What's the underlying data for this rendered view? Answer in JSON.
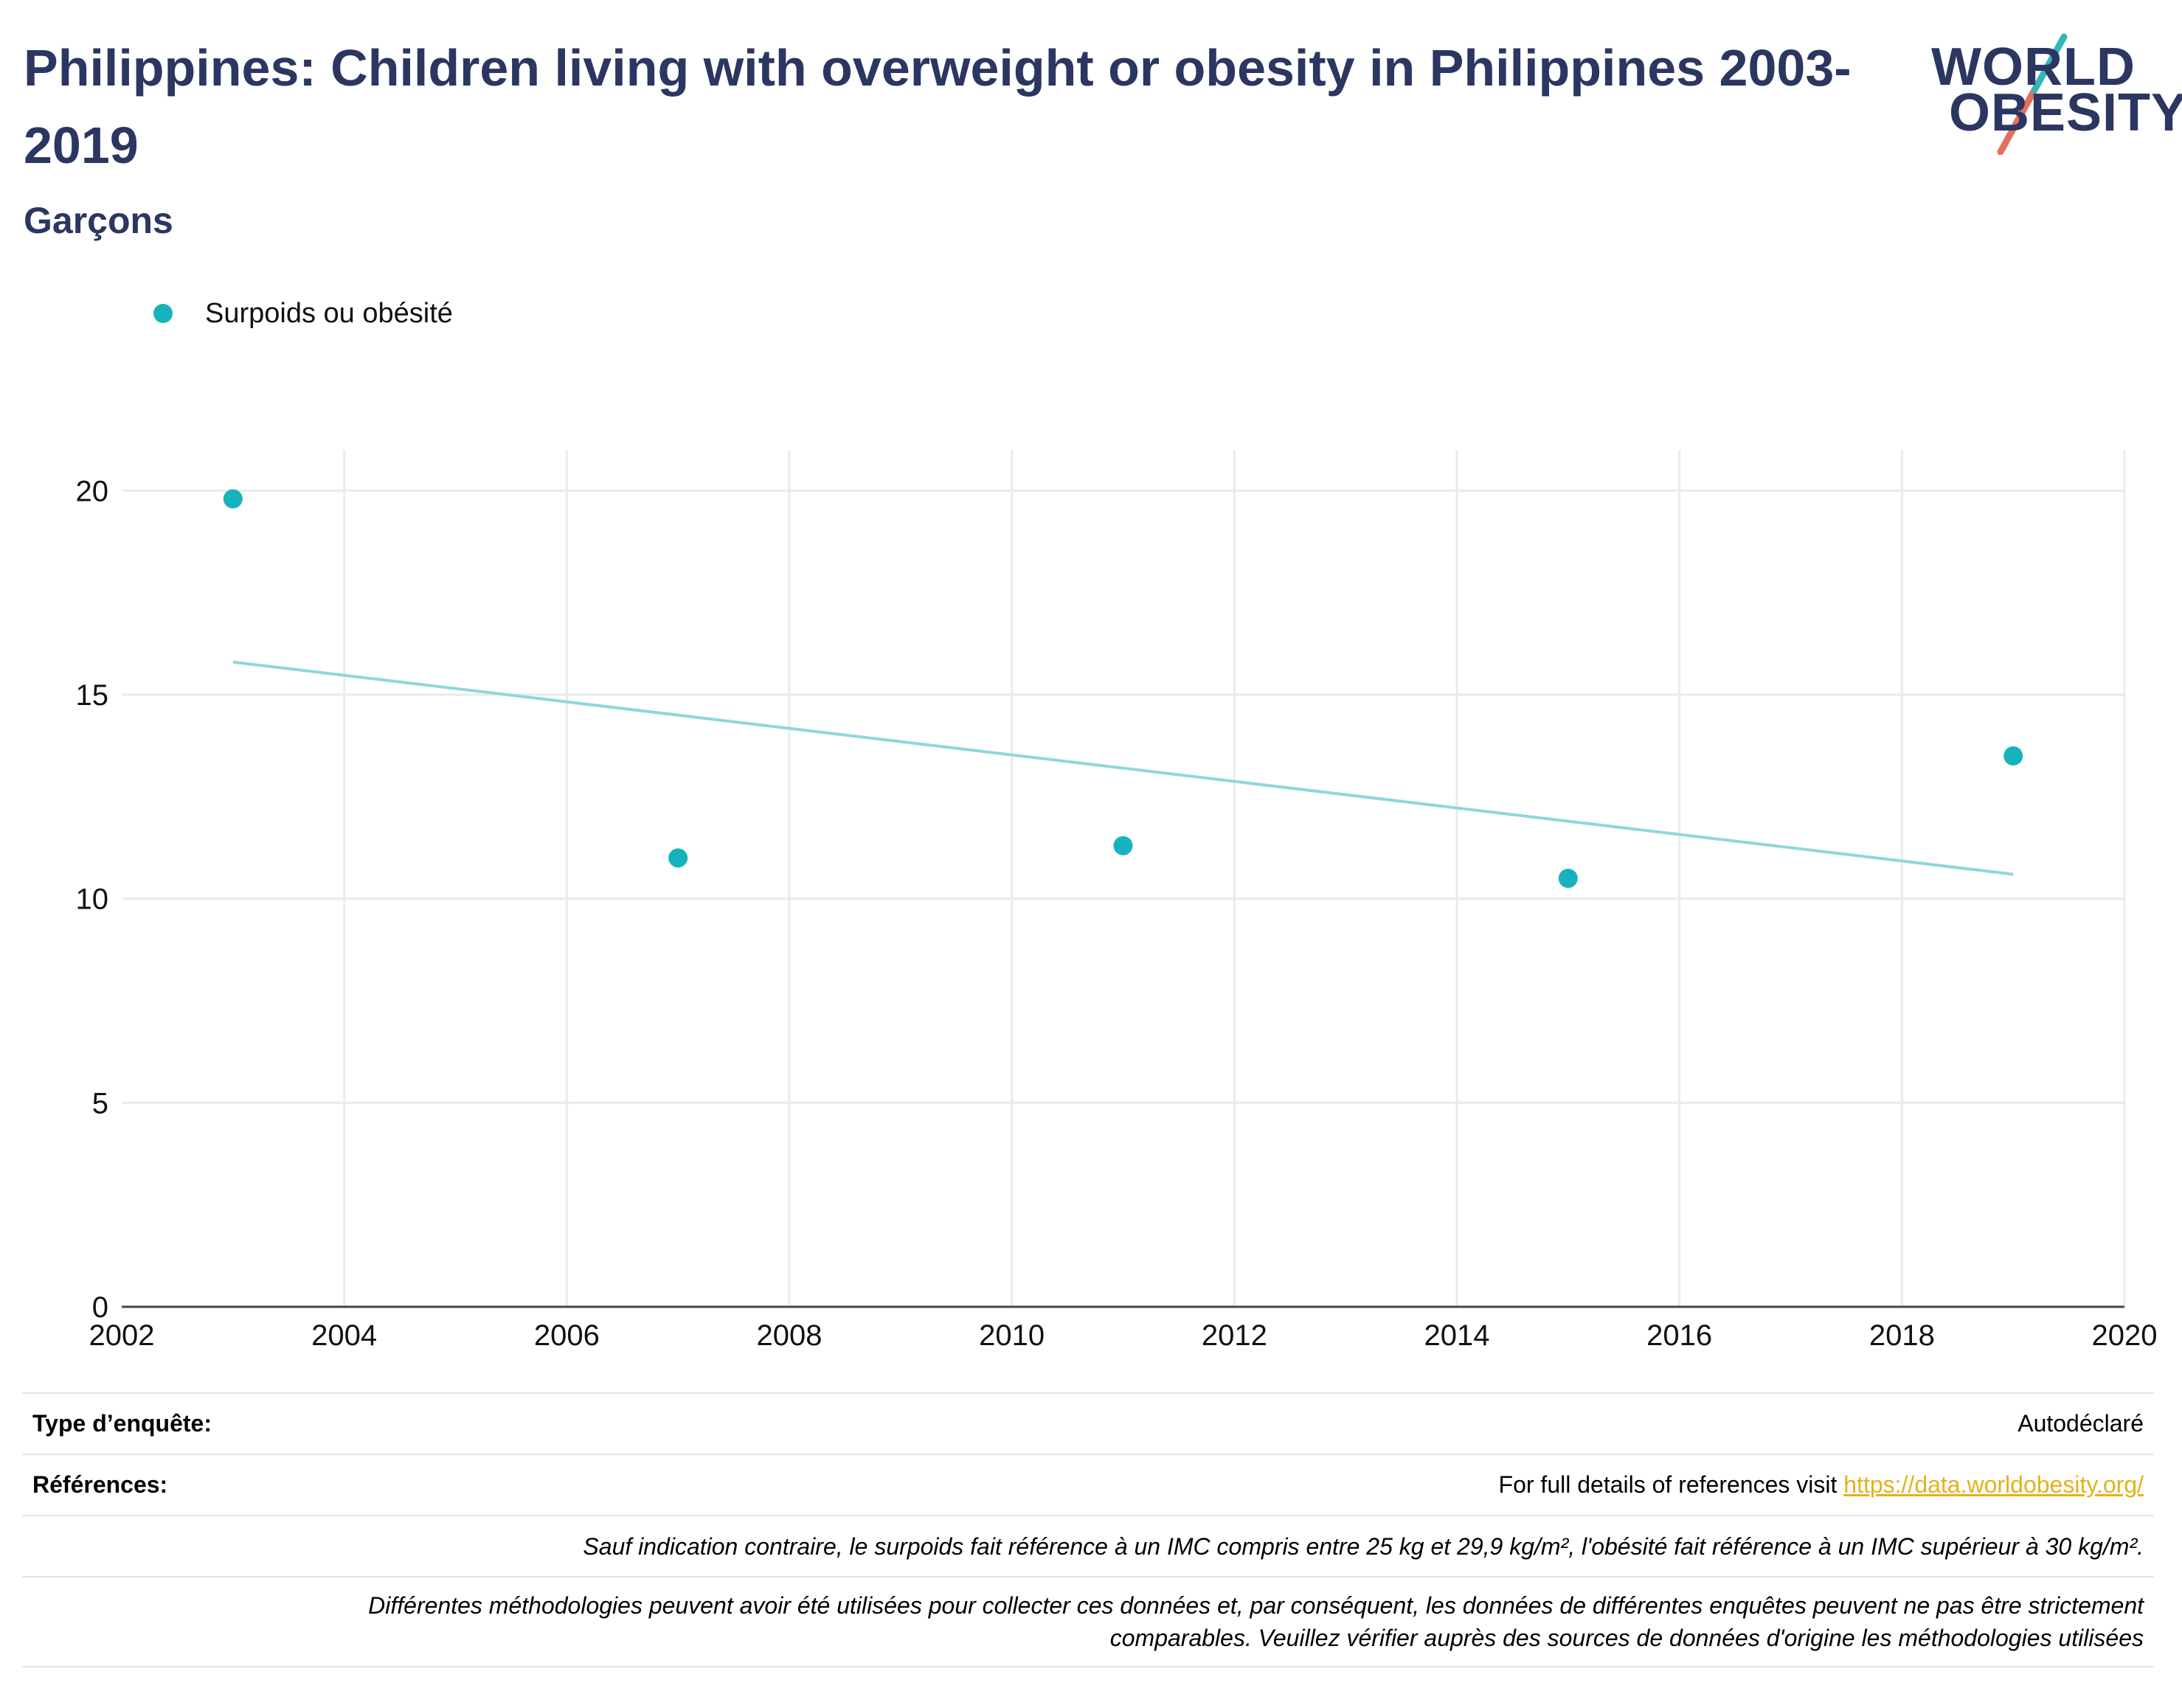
{
  "header": {
    "title": "Philippines: Children living with overweight or obesity in Philippines 2003-2019",
    "subtitle": "Garçons"
  },
  "logo": {
    "line1": "WORLD",
    "line2": "OBESITY"
  },
  "legend": {
    "label": "Surpoids ou obésité"
  },
  "colors": {
    "point": "#17b3bc",
    "trend": "#8fd7dc",
    "title": "#2b3661",
    "link": "#e3b21a",
    "grid": "#ebebeb"
  },
  "chart_data": {
    "type": "scatter",
    "title": "Philippines: Children living with overweight or obesity in Philippines 2003-2019",
    "subtitle": "Garçons",
    "xlabel": "",
    "ylabel": "",
    "xlim": [
      2002,
      2020
    ],
    "ylim": [
      0,
      21
    ],
    "x_ticks": [
      2002,
      2004,
      2006,
      2008,
      2010,
      2012,
      2014,
      2016,
      2018,
      2020
    ],
    "y_ticks": [
      0,
      5,
      10,
      15,
      20
    ],
    "grid": true,
    "legend_position": "top-left",
    "series": [
      {
        "name": "Surpoids ou obésité",
        "x": [
          2003,
          2007,
          2011,
          2015,
          2019
        ],
        "y": [
          19.8,
          11.0,
          11.3,
          10.5,
          13.5
        ]
      }
    ],
    "trendline": {
      "x": [
        2003,
        2019
      ],
      "y": [
        15.8,
        10.6
      ]
    }
  },
  "footer": {
    "survey_type_label": "Type d’enquête:",
    "survey_type_value": "Autodéclaré",
    "references_label": "Références:",
    "references_text": "For full details of references visit ",
    "references_link": "https://data.worldobesity.org/",
    "note1": "Sauf indication contraire, le surpoids fait référence à un IMC compris entre 25 kg et 29,9 kg/m², l'obésité fait référence à un IMC supérieur à 30 kg/m².",
    "note2_line1": "Différentes méthodologies peuvent avoir été utilisées pour collecter ces données et, par conséquent, les données de différentes enquêtes peuvent ne pas être strictement",
    "note2_line2": "comparables. Veuillez vérifier auprès des sources de données d'origine les méthodologies utilisées"
  }
}
